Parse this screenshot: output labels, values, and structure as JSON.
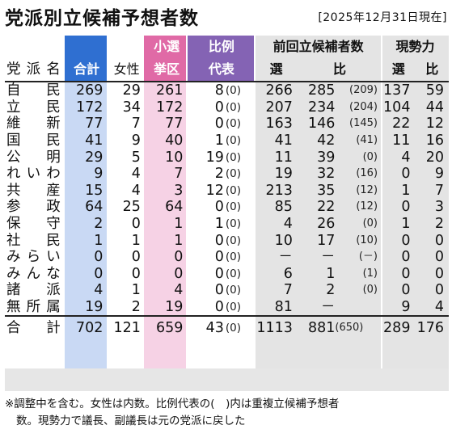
{
  "title": "党派別立候補予想者数",
  "date": "[2025年12月31日現在]",
  "headers": {
    "party": "党派名",
    "total": "合計",
    "female": "女性",
    "smd_line1": "小選",
    "smd_line2": "挙区",
    "pr_line1": "比例",
    "pr_line2": "代表",
    "prev": "前回立候補者数",
    "prev_smd": "選",
    "prev_pr": "比",
    "current": "現勢力",
    "cur_smd": "選",
    "cur_pr": "比"
  },
  "rows": [
    {
      "party": "自民",
      "total": "269",
      "female": "29",
      "smd": "261",
      "pr": "8",
      "pr_dup": "(0)",
      "prev_total": "266",
      "prev_pr": "285",
      "prev_pr_dup": "(209)",
      "cur_smd": "137",
      "cur_pr": "59"
    },
    {
      "party": "立民",
      "total": "172",
      "female": "34",
      "smd": "172",
      "pr": "0",
      "pr_dup": "(0)",
      "prev_total": "207",
      "prev_pr": "234",
      "prev_pr_dup": "(204)",
      "cur_smd": "104",
      "cur_pr": "44"
    },
    {
      "party": "維新",
      "total": "77",
      "female": "7",
      "smd": "77",
      "pr": "0",
      "pr_dup": "(0)",
      "prev_total": "163",
      "prev_pr": "146",
      "prev_pr_dup": "(145)",
      "cur_smd": "22",
      "cur_pr": "12"
    },
    {
      "party": "国民",
      "total": "41",
      "female": "9",
      "smd": "40",
      "pr": "1",
      "pr_dup": "(0)",
      "prev_total": "41",
      "prev_pr": "42",
      "prev_pr_dup": "(41)",
      "cur_smd": "11",
      "cur_pr": "16"
    },
    {
      "party": "公明",
      "total": "29",
      "female": "5",
      "smd": "10",
      "pr": "19",
      "pr_dup": "(0)",
      "prev_total": "11",
      "prev_pr": "39",
      "prev_pr_dup": "(0)",
      "cur_smd": "4",
      "cur_pr": "20"
    },
    {
      "party": "れいわ",
      "total": "9",
      "female": "4",
      "smd": "7",
      "pr": "2",
      "pr_dup": "(0)",
      "prev_total": "19",
      "prev_pr": "32",
      "prev_pr_dup": "(16)",
      "cur_smd": "0",
      "cur_pr": "9"
    },
    {
      "party": "共産",
      "total": "15",
      "female": "4",
      "smd": "3",
      "pr": "12",
      "pr_dup": "(0)",
      "prev_total": "213",
      "prev_pr": "35",
      "prev_pr_dup": "(12)",
      "cur_smd": "1",
      "cur_pr": "7"
    },
    {
      "party": "参政",
      "total": "64",
      "female": "25",
      "smd": "64",
      "pr": "0",
      "pr_dup": "(0)",
      "prev_total": "85",
      "prev_pr": "22",
      "prev_pr_dup": "(12)",
      "cur_smd": "0",
      "cur_pr": "3"
    },
    {
      "party": "保守",
      "total": "2",
      "female": "0",
      "smd": "1",
      "pr": "1",
      "pr_dup": "(0)",
      "prev_total": "4",
      "prev_pr": "26",
      "prev_pr_dup": "(0)",
      "cur_smd": "1",
      "cur_pr": "2"
    },
    {
      "party": "社民",
      "total": "1",
      "female": "1",
      "smd": "1",
      "pr": "0",
      "pr_dup": "(0)",
      "prev_total": "10",
      "prev_pr": "17",
      "prev_pr_dup": "(10)",
      "cur_smd": "0",
      "cur_pr": "0"
    },
    {
      "party": "みらい",
      "total": "0",
      "female": "0",
      "smd": "0",
      "pr": "0",
      "pr_dup": "(0)",
      "prev_total": "－",
      "prev_pr": "－",
      "prev_pr_dup": "(－)",
      "cur_smd": "0",
      "cur_pr": "0"
    },
    {
      "party": "みんな",
      "total": "0",
      "female": "0",
      "smd": "0",
      "pr": "0",
      "pr_dup": "(0)",
      "prev_total": "6",
      "prev_pr": "1",
      "prev_pr_dup": "(1)",
      "cur_smd": "0",
      "cur_pr": "0"
    },
    {
      "party": "諸派",
      "total": "4",
      "female": "1",
      "smd": "4",
      "pr": "0",
      "pr_dup": "(0)",
      "prev_total": "7",
      "prev_pr": "2",
      "prev_pr_dup": "(0)",
      "cur_smd": "0",
      "cur_pr": "0"
    },
    {
      "party": "無所属",
      "total": "19",
      "female": "2",
      "smd": "19",
      "pr": "0",
      "pr_dup": "(0)",
      "prev_total": "81",
      "prev_pr": "－",
      "prev_pr_dup": "",
      "cur_smd": "9",
      "cur_pr": "4"
    }
  ],
  "total_row": {
    "party": "合計",
    "total": "702",
    "female": "121",
    "smd": "659",
    "pr": "43",
    "pr_dup": "(0)",
    "prev_total": "1113",
    "prev_pr": "881",
    "prev_pr_dup": "(650)",
    "cur_smd": "289",
    "cur_pr": "176"
  },
  "note_line1": "※調整中を含む。女性は内数。比例代表の(　)内は重複立候補予想者",
  "note_line2": "数。現勢力で議長、副議長は元の党派に戻した",
  "colors": {
    "total_header": "#2f6fd1",
    "total_band": "#c9d9f4",
    "smd_header": "#e06aa6",
    "smd_band": "#f6d2e5",
    "pr_header": "#8463b4",
    "gray_band": "#e4e4e4"
  }
}
